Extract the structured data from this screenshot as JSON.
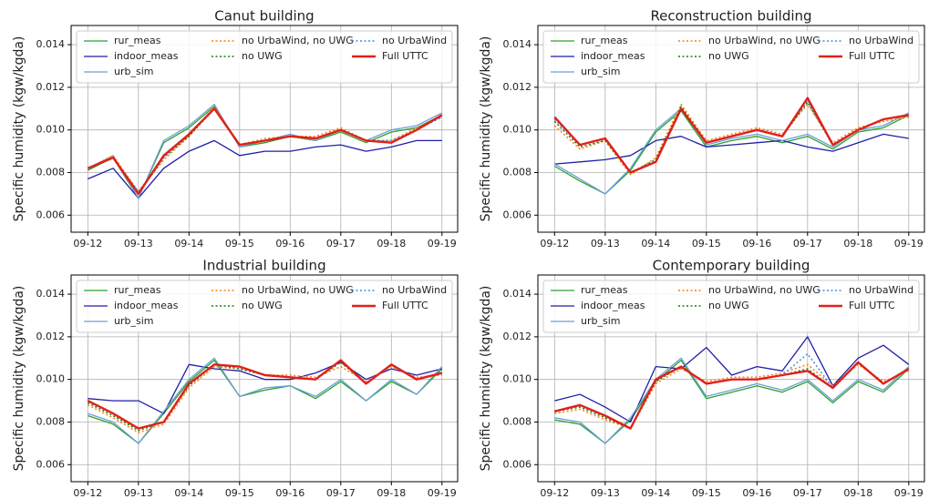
{
  "chart_data": [
    {
      "type": "line",
      "title": "Canut building",
      "ylabel": "Specific humidity (kgw/kgda)",
      "x": [
        0,
        0.5,
        1,
        1.5,
        2,
        2.5,
        3,
        3.5,
        4,
        4.5,
        5,
        5.5,
        6,
        6.5,
        7
      ],
      "xlim": [
        -0.33,
        7.31
      ],
      "xticks": [
        {
          "value": 0,
          "label": "09-12"
        },
        {
          "value": 1,
          "label": "09-13"
        },
        {
          "value": 2,
          "label": "09-14"
        },
        {
          "value": 3,
          "label": "09-15"
        },
        {
          "value": 4,
          "label": "09-16"
        },
        {
          "value": 5,
          "label": "09-17"
        },
        {
          "value": 6,
          "label": "09-18"
        },
        {
          "value": 7,
          "label": "09-19"
        }
      ],
      "ylim": [
        0.0052,
        0.0149
      ],
      "yticks": [
        0.006,
        0.008,
        {
          "value": 0.01,
          "label": "0.010"
        },
        0.012,
        0.014
      ],
      "grid": true,
      "legend": "upper left",
      "series": [
        {
          "name": "rur_meas",
          "color": "#2ca02c",
          "style": "solid",
          "values": [
            0.0081,
            0.0087,
            0.0068,
            0.0094,
            0.0101,
            0.0111,
            0.0092,
            0.0094,
            0.0097,
            0.0095,
            0.0099,
            0.0094,
            0.0099,
            0.0101,
            0.0107
          ]
        },
        {
          "name": "indoor_meas",
          "color": "#1f1fa8",
          "style": "solid",
          "values": [
            0.0077,
            0.0082,
            0.0068,
            0.0082,
            0.009,
            0.0095,
            0.0088,
            0.009,
            0.009,
            0.0092,
            0.0093,
            0.009,
            0.0092,
            0.0095,
            0.0095
          ]
        },
        {
          "name": "urb_sim",
          "color": "#6c9fd6",
          "style": "solid",
          "values": [
            0.0082,
            0.0088,
            0.0068,
            0.0095,
            0.0102,
            0.0112,
            0.0092,
            0.0095,
            0.0098,
            0.0095,
            0.01,
            0.0095,
            0.01,
            0.0102,
            0.0108
          ]
        },
        {
          "name": "no UrbaWind, no UWG",
          "color": "#ff7f0e",
          "style": "dotted",
          "values": [
            0.0082,
            0.0088,
            0.0071,
            0.0086,
            0.0097,
            0.0111,
            0.0093,
            0.0096,
            0.0097,
            0.0097,
            0.0101,
            0.0095,
            0.0095,
            0.0101,
            0.0106
          ]
        },
        {
          "name": "no UWG",
          "color": "#1a7a1a",
          "style": "dotted",
          "values": [
            0.0082,
            0.0087,
            0.007,
            0.0087,
            0.0097,
            0.011,
            0.0093,
            0.0095,
            0.0097,
            0.0096,
            0.01,
            0.0095,
            0.0094,
            0.01,
            0.0107
          ]
        },
        {
          "name": "no UrbaWind",
          "color": "#3d8fe0",
          "style": "dotted",
          "values": [
            0.0082,
            0.0087,
            0.0071,
            0.0087,
            0.0098,
            0.011,
            0.0093,
            0.0095,
            0.0097,
            0.0096,
            0.01,
            0.0095,
            0.0095,
            0.01,
            0.0106
          ]
        },
        {
          "name": "Full UTTC",
          "color": "#e0201b",
          "style": "thick",
          "values": [
            0.0082,
            0.0087,
            0.007,
            0.0088,
            0.0098,
            0.011,
            0.0093,
            0.0095,
            0.0097,
            0.0096,
            0.01,
            0.0095,
            0.0094,
            0.01,
            0.0107
          ]
        }
      ]
    },
    {
      "type": "line",
      "title": "Reconstruction building",
      "ylabel": "Specific humidity (kgw/kgda)",
      "x": [
        0,
        0.5,
        1,
        1.5,
        2,
        2.5,
        3,
        3.5,
        4,
        4.5,
        5,
        5.5,
        6,
        6.5,
        7
      ],
      "xlim": [
        -0.33,
        7.31
      ],
      "xticks": [
        {
          "value": 0,
          "label": "09-12"
        },
        {
          "value": 1,
          "label": "09-13"
        },
        {
          "value": 2,
          "label": "09-14"
        },
        {
          "value": 3,
          "label": "09-15"
        },
        {
          "value": 4,
          "label": "09-16"
        },
        {
          "value": 5,
          "label": "09-17"
        },
        {
          "value": 6,
          "label": "09-18"
        },
        {
          "value": 7,
          "label": "09-19"
        }
      ],
      "ylim": [
        0.0052,
        0.0149
      ],
      "yticks": [
        0.006,
        0.008,
        {
          "value": 0.01,
          "label": "0.010"
        },
        0.012,
        0.014
      ],
      "grid": true,
      "legend": "upper left",
      "series": [
        {
          "name": "rur_meas",
          "color": "#2ca02c",
          "style": "solid",
          "values": [
            0.0083,
            0.0076,
            0.007,
            0.0081,
            0.0099,
            0.0109,
            0.0092,
            0.0095,
            0.0097,
            0.0094,
            0.0097,
            0.0091,
            0.0099,
            0.0101,
            0.0107
          ]
        },
        {
          "name": "indoor_meas",
          "color": "#1f1fa8",
          "style": "solid",
          "values": [
            0.0084,
            0.0085,
            0.0086,
            0.0088,
            0.0095,
            0.0097,
            0.0092,
            0.0093,
            0.0094,
            0.0095,
            0.0092,
            0.009,
            0.0094,
            0.0098,
            0.0096
          ]
        },
        {
          "name": "urb_sim",
          "color": "#6c9fd6",
          "style": "solid",
          "values": [
            0.0084,
            0.0077,
            0.007,
            0.0082,
            0.01,
            0.011,
            0.0093,
            0.0096,
            0.0098,
            0.0095,
            0.0098,
            0.0092,
            0.01,
            0.0102,
            0.0108
          ]
        },
        {
          "name": "no UrbaWind, no UWG",
          "color": "#ff7f0e",
          "style": "dotted",
          "values": [
            0.0102,
            0.0091,
            0.0095,
            0.0079,
            0.0087,
            0.0112,
            0.0095,
            0.0098,
            0.0101,
            0.0098,
            0.0112,
            0.0094,
            0.0101,
            0.0104,
            0.0106
          ]
        },
        {
          "name": "no UWG",
          "color": "#1a7a1a",
          "style": "dotted",
          "values": [
            0.0104,
            0.0092,
            0.0095,
            0.008,
            0.0086,
            0.0111,
            0.0094,
            0.0097,
            0.01,
            0.0097,
            0.0113,
            0.0093,
            0.01,
            0.0105,
            0.0107
          ]
        },
        {
          "name": "no UrbaWind",
          "color": "#3d8fe0",
          "style": "dotted",
          "values": [
            0.0105,
            0.0093,
            0.0096,
            0.008,
            0.0085,
            0.011,
            0.0094,
            0.0097,
            0.01,
            0.0097,
            0.0114,
            0.0093,
            0.01,
            0.0105,
            0.0107
          ]
        },
        {
          "name": "Full UTTC",
          "color": "#e0201b",
          "style": "thick",
          "values": [
            0.0106,
            0.0093,
            0.0096,
            0.008,
            0.0085,
            0.011,
            0.0094,
            0.0097,
            0.01,
            0.0097,
            0.0115,
            0.0093,
            0.01,
            0.0105,
            0.0107
          ]
        }
      ]
    },
    {
      "type": "line",
      "title": "Industrial building",
      "ylabel": "Specific humidity (kgw/kgda)",
      "x": [
        0,
        0.5,
        1,
        1.5,
        2,
        2.5,
        3,
        3.5,
        4,
        4.5,
        5,
        5.5,
        6,
        6.5,
        7
      ],
      "xlim": [
        -0.33,
        7.31
      ],
      "xticks": [
        {
          "value": 0,
          "label": "09-12"
        },
        {
          "value": 1,
          "label": "09-13"
        },
        {
          "value": 2,
          "label": "09-14"
        },
        {
          "value": 3,
          "label": "09-15"
        },
        {
          "value": 4,
          "label": "09-16"
        },
        {
          "value": 5,
          "label": "09-17"
        },
        {
          "value": 6,
          "label": "09-18"
        },
        {
          "value": 7,
          "label": "09-19"
        }
      ],
      "ylim": [
        0.0052,
        0.0149
      ],
      "yticks": [
        0.006,
        0.008,
        {
          "value": 0.01,
          "label": "0.010"
        },
        0.012,
        0.014
      ],
      "grid": true,
      "legend": "upper left",
      "series": [
        {
          "name": "rur_meas",
          "color": "#2ca02c",
          "style": "solid",
          "values": [
            0.0083,
            0.0079,
            0.007,
            0.0084,
            0.0099,
            0.0109,
            0.0092,
            0.0095,
            0.0097,
            0.0091,
            0.0099,
            0.009,
            0.0099,
            0.0093,
            0.0105
          ]
        },
        {
          "name": "indoor_meas",
          "color": "#1f1fa8",
          "style": "solid",
          "values": [
            0.0091,
            0.009,
            0.009,
            0.0084,
            0.0107,
            0.0105,
            0.0104,
            0.01,
            0.01,
            0.0103,
            0.0108,
            0.01,
            0.0105,
            0.0102,
            0.0105
          ]
        },
        {
          "name": "urb_sim",
          "color": "#6c9fd6",
          "style": "solid",
          "values": [
            0.0084,
            0.008,
            0.007,
            0.0085,
            0.01,
            0.011,
            0.0092,
            0.0096,
            0.0097,
            0.0092,
            0.01,
            0.009,
            0.01,
            0.0093,
            0.0106
          ]
        },
        {
          "name": "no UrbaWind, no UWG",
          "color": "#ff7f0e",
          "style": "dotted",
          "values": [
            0.0088,
            0.0082,
            0.0075,
            0.0079,
            0.0096,
            0.0106,
            0.0105,
            0.0102,
            0.0102,
            0.0101,
            0.0106,
            0.0099,
            0.0106,
            0.0101,
            0.0102
          ]
        },
        {
          "name": "no UWG",
          "color": "#1a7a1a",
          "style": "dotted",
          "values": [
            0.0089,
            0.0083,
            0.0076,
            0.008,
            0.0097,
            0.0107,
            0.0105,
            0.0102,
            0.0101,
            0.01,
            0.0108,
            0.0098,
            0.0107,
            0.01,
            0.0103
          ]
        },
        {
          "name": "no UrbaWind",
          "color": "#3d8fe0",
          "style": "dotted",
          "values": [
            0.009,
            0.0084,
            0.0077,
            0.008,
            0.0098,
            0.0107,
            0.0106,
            0.0102,
            0.0101,
            0.01,
            0.0109,
            0.0098,
            0.0107,
            0.01,
            0.0103
          ]
        },
        {
          "name": "Full UTTC",
          "color": "#e0201b",
          "style": "thick",
          "values": [
            0.009,
            0.0084,
            0.0077,
            0.008,
            0.0098,
            0.0107,
            0.0106,
            0.0102,
            0.0101,
            0.01,
            0.0109,
            0.0098,
            0.0107,
            0.01,
            0.0103
          ]
        }
      ]
    },
    {
      "type": "line",
      "title": "Contemporary building",
      "ylabel": "Specific humidity (kgw/kgda)",
      "x": [
        0,
        0.5,
        1,
        1.5,
        2,
        2.5,
        3,
        3.5,
        4,
        4.5,
        5,
        5.5,
        6,
        6.5,
        7
      ],
      "xlim": [
        -0.33,
        7.31
      ],
      "xticks": [
        {
          "value": 0,
          "label": "09-12"
        },
        {
          "value": 1,
          "label": "09-13"
        },
        {
          "value": 2,
          "label": "09-14"
        },
        {
          "value": 3,
          "label": "09-15"
        },
        {
          "value": 4,
          "label": "09-16"
        },
        {
          "value": 5,
          "label": "09-17"
        },
        {
          "value": 6,
          "label": "09-18"
        },
        {
          "value": 7,
          "label": "09-19"
        }
      ],
      "ylim": [
        0.0052,
        0.0149
      ],
      "yticks": [
        0.006,
        0.008,
        {
          "value": 0.01,
          "label": "0.010"
        },
        0.012,
        0.014
      ],
      "grid": true,
      "legend": "upper left",
      "series": [
        {
          "name": "rur_meas",
          "color": "#2ca02c",
          "style": "solid",
          "values": [
            0.0081,
            0.0079,
            0.007,
            0.0081,
            0.0099,
            0.0109,
            0.0091,
            0.0094,
            0.0097,
            0.0094,
            0.0099,
            0.0089,
            0.0099,
            0.0094,
            0.0105
          ]
        },
        {
          "name": "indoor_meas",
          "color": "#1f1fa8",
          "style": "solid",
          "values": [
            0.009,
            0.0093,
            0.0087,
            0.008,
            0.0106,
            0.0105,
            0.0115,
            0.0102,
            0.0106,
            0.0104,
            0.012,
            0.0097,
            0.011,
            0.0116,
            0.0107
          ]
        },
        {
          "name": "urb_sim",
          "color": "#6c9fd6",
          "style": "solid",
          "values": [
            0.0082,
            0.008,
            0.007,
            0.0082,
            0.01,
            0.011,
            0.0092,
            0.0095,
            0.0098,
            0.0095,
            0.01,
            0.009,
            0.01,
            0.0095,
            0.0106
          ]
        },
        {
          "name": "no UrbaWind, no UWG",
          "color": "#ff7f0e",
          "style": "dotted",
          "values": [
            0.0084,
            0.0086,
            0.0081,
            0.0077,
            0.0098,
            0.0105,
            0.0099,
            0.0101,
            0.0101,
            0.0103,
            0.0107,
            0.0097,
            0.0107,
            0.0099,
            0.0104
          ]
        },
        {
          "name": "no UWG",
          "color": "#1a7a1a",
          "style": "dotted",
          "values": [
            0.0085,
            0.0087,
            0.0082,
            0.0077,
            0.0099,
            0.0106,
            0.0098,
            0.01,
            0.01,
            0.0102,
            0.0105,
            0.0096,
            0.0108,
            0.0098,
            0.0105
          ]
        },
        {
          "name": "no UrbaWind",
          "color": "#3d8fe0",
          "style": "dotted",
          "values": [
            0.0085,
            0.0088,
            0.0083,
            0.0077,
            0.01,
            0.0106,
            0.0098,
            0.01,
            0.01,
            0.0102,
            0.0112,
            0.0096,
            0.0108,
            0.0098,
            0.0105
          ]
        },
        {
          "name": "Full UTTC",
          "color": "#e0201b",
          "style": "thick",
          "values": [
            0.0085,
            0.0088,
            0.0083,
            0.0077,
            0.01,
            0.0106,
            0.0098,
            0.01,
            0.01,
            0.0102,
            0.0104,
            0.0096,
            0.0108,
            0.0098,
            0.0105
          ]
        }
      ]
    }
  ]
}
